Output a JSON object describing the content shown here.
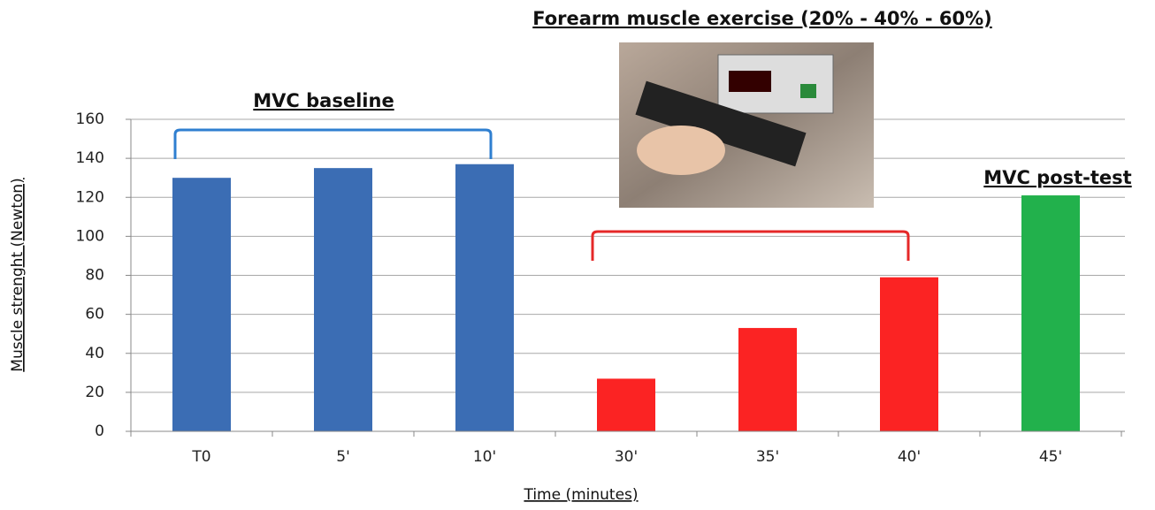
{
  "chart_data": {
    "type": "bar",
    "annotations": [
      "MVC baseline",
      "Forearm muscle exercise (20% - 40% - 60%)",
      "MVC post-test"
    ],
    "x_label": "Time (minutes)",
    "y_label": "Muscle strenght (Newton)",
    "categories": [
      "T0",
      "5'",
      "10'",
      "30'",
      "35'",
      "40'",
      "45'"
    ],
    "values": [
      130,
      135,
      137,
      27,
      53,
      79,
      121
    ],
    "colors": [
      "#3b6db4",
      "#3b6db4",
      "#3b6db4",
      "#fb2323",
      "#fb2323",
      "#fb2323",
      "#22b14c"
    ],
    "ylim": [
      0,
      160
    ],
    "yticks": [
      0,
      20,
      40,
      60,
      80,
      100,
      120,
      140,
      160
    ],
    "grid": true
  }
}
